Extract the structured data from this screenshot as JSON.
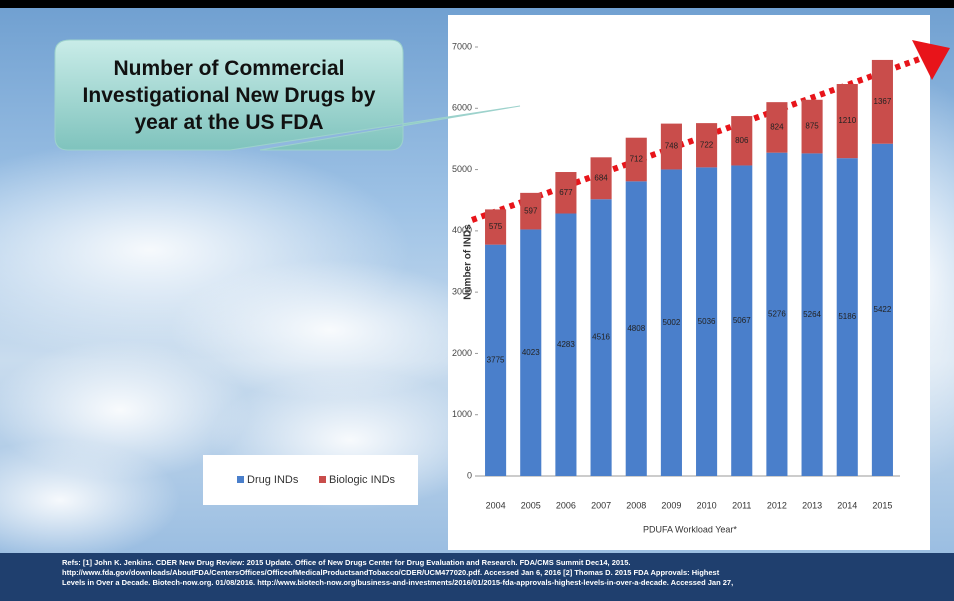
{
  "chart_data": {
    "type": "bar",
    "stacked": true,
    "title": "Number of Commercial Investigational New Drugs by year at the US FDA",
    "categories": [
      "2004",
      "2005",
      "2006",
      "2007",
      "2008",
      "2009",
      "2010",
      "2011",
      "2012",
      "2013",
      "2014",
      "2015"
    ],
    "series": [
      {
        "name": "Drug INDs",
        "color": "#4a7fcb",
        "values": [
          3775,
          4023,
          4283,
          4516,
          4808,
          5002,
          5036,
          5067,
          5276,
          5264,
          5186,
          5422
        ]
      },
      {
        "name": "Biologic INDs",
        "color": "#c94d4b",
        "values": [
          575,
          597,
          677,
          684,
          712,
          748,
          722,
          806,
          824,
          875,
          1210,
          1367
        ]
      }
    ],
    "ylim": [
      0,
      7000
    ],
    "yticks": [
      0,
      1000,
      2000,
      3000,
      4000,
      5000,
      6000,
      7000
    ],
    "y_label": "Number of INDs",
    "x_label": "PDUFA Workload Year*",
    "grid": false
  },
  "refs": [
    "Refs: [1] John K. Jenkins. CDER New Drug Review: 2015 Update. Office of New Drugs Center for Drug Evaluation and Research. FDA/CMS Summit Dec14, 2015.",
    "http://www.fda.gov/downloads/AboutFDA/CentersOffices/OfficeofMedicalProductsandTobacco/CDER/UCM477020.pdf. Accessed Jan 6, 2016 [2] Thomas D. 2015 FDA Approvals: Highest",
    "Levels in Over a Decade. Biotech-now.org. 01/08/2016. http://www.biotech-now.org/business-and-investments/2016/01/2015-fda-approvals-highest-levels-in-over-a-decade. Accessed Jan 27,"
  ]
}
